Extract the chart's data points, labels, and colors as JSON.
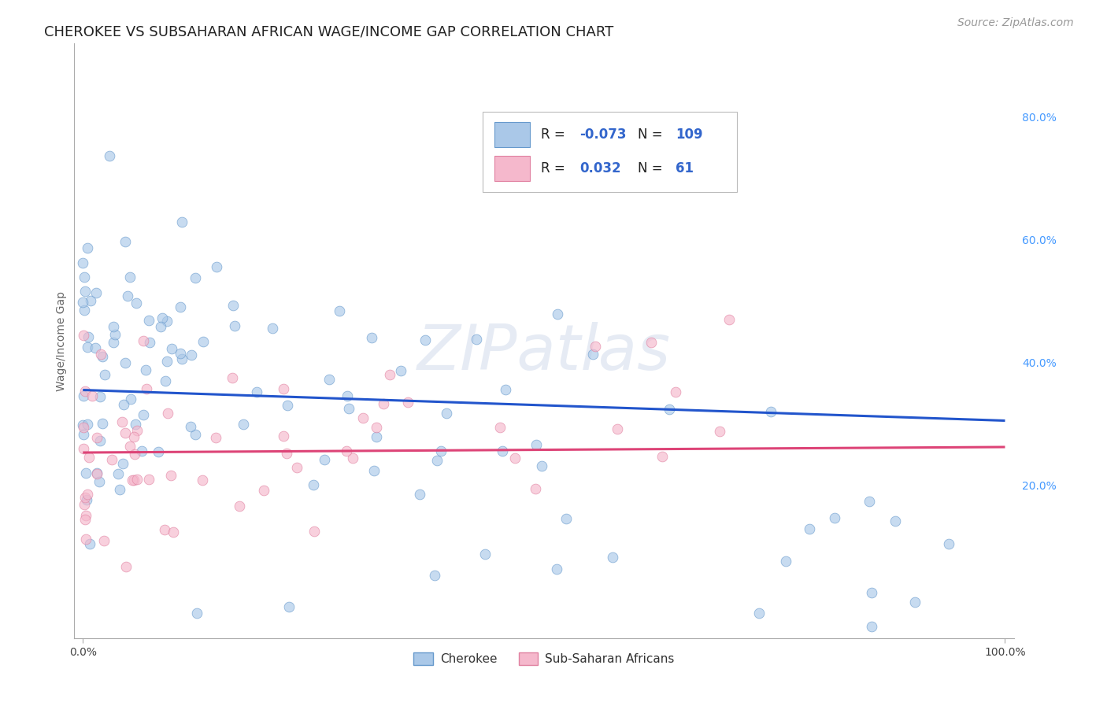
{
  "title": "CHEROKEE VS SUBSAHARAN AFRICAN WAGE/INCOME GAP CORRELATION CHART",
  "source": "Source: ZipAtlas.com",
  "ylabel": "Wage/Income Gap",
  "background_color": "#ffffff",
  "grid_color": "#c8c8c8",
  "cherokee_color": "#aac8e8",
  "cherokee_edge_color": "#6699cc",
  "subsaharan_color": "#f5b8cc",
  "subsaharan_edge_color": "#e080a0",
  "cherokee_line_color": "#2255cc",
  "subsaharan_line_color": "#dd4477",
  "watermark": "ZIPatlas",
  "R1": -0.073,
  "N1": 109,
  "R2": 0.032,
  "N2": 61,
  "xlim": [
    -0.01,
    1.01
  ],
  "ylim": [
    -0.05,
    0.92
  ],
  "ytick_positions": [
    0.2,
    0.4,
    0.6,
    0.8
  ],
  "ytick_labels": [
    "20.0%",
    "40.0%",
    "60.0%",
    "80.0%"
  ],
  "title_fontsize": 13,
  "axis_label_fontsize": 10,
  "tick_fontsize": 10,
  "legend_fontsize": 12,
  "source_fontsize": 10,
  "marker_size": 85,
  "marker_alpha": 0.65,
  "line_width": 2.2,
  "blue_line_y0": 0.355,
  "blue_line_y1": 0.305,
  "pink_line_y0": 0.253,
  "pink_line_y1": 0.262
}
